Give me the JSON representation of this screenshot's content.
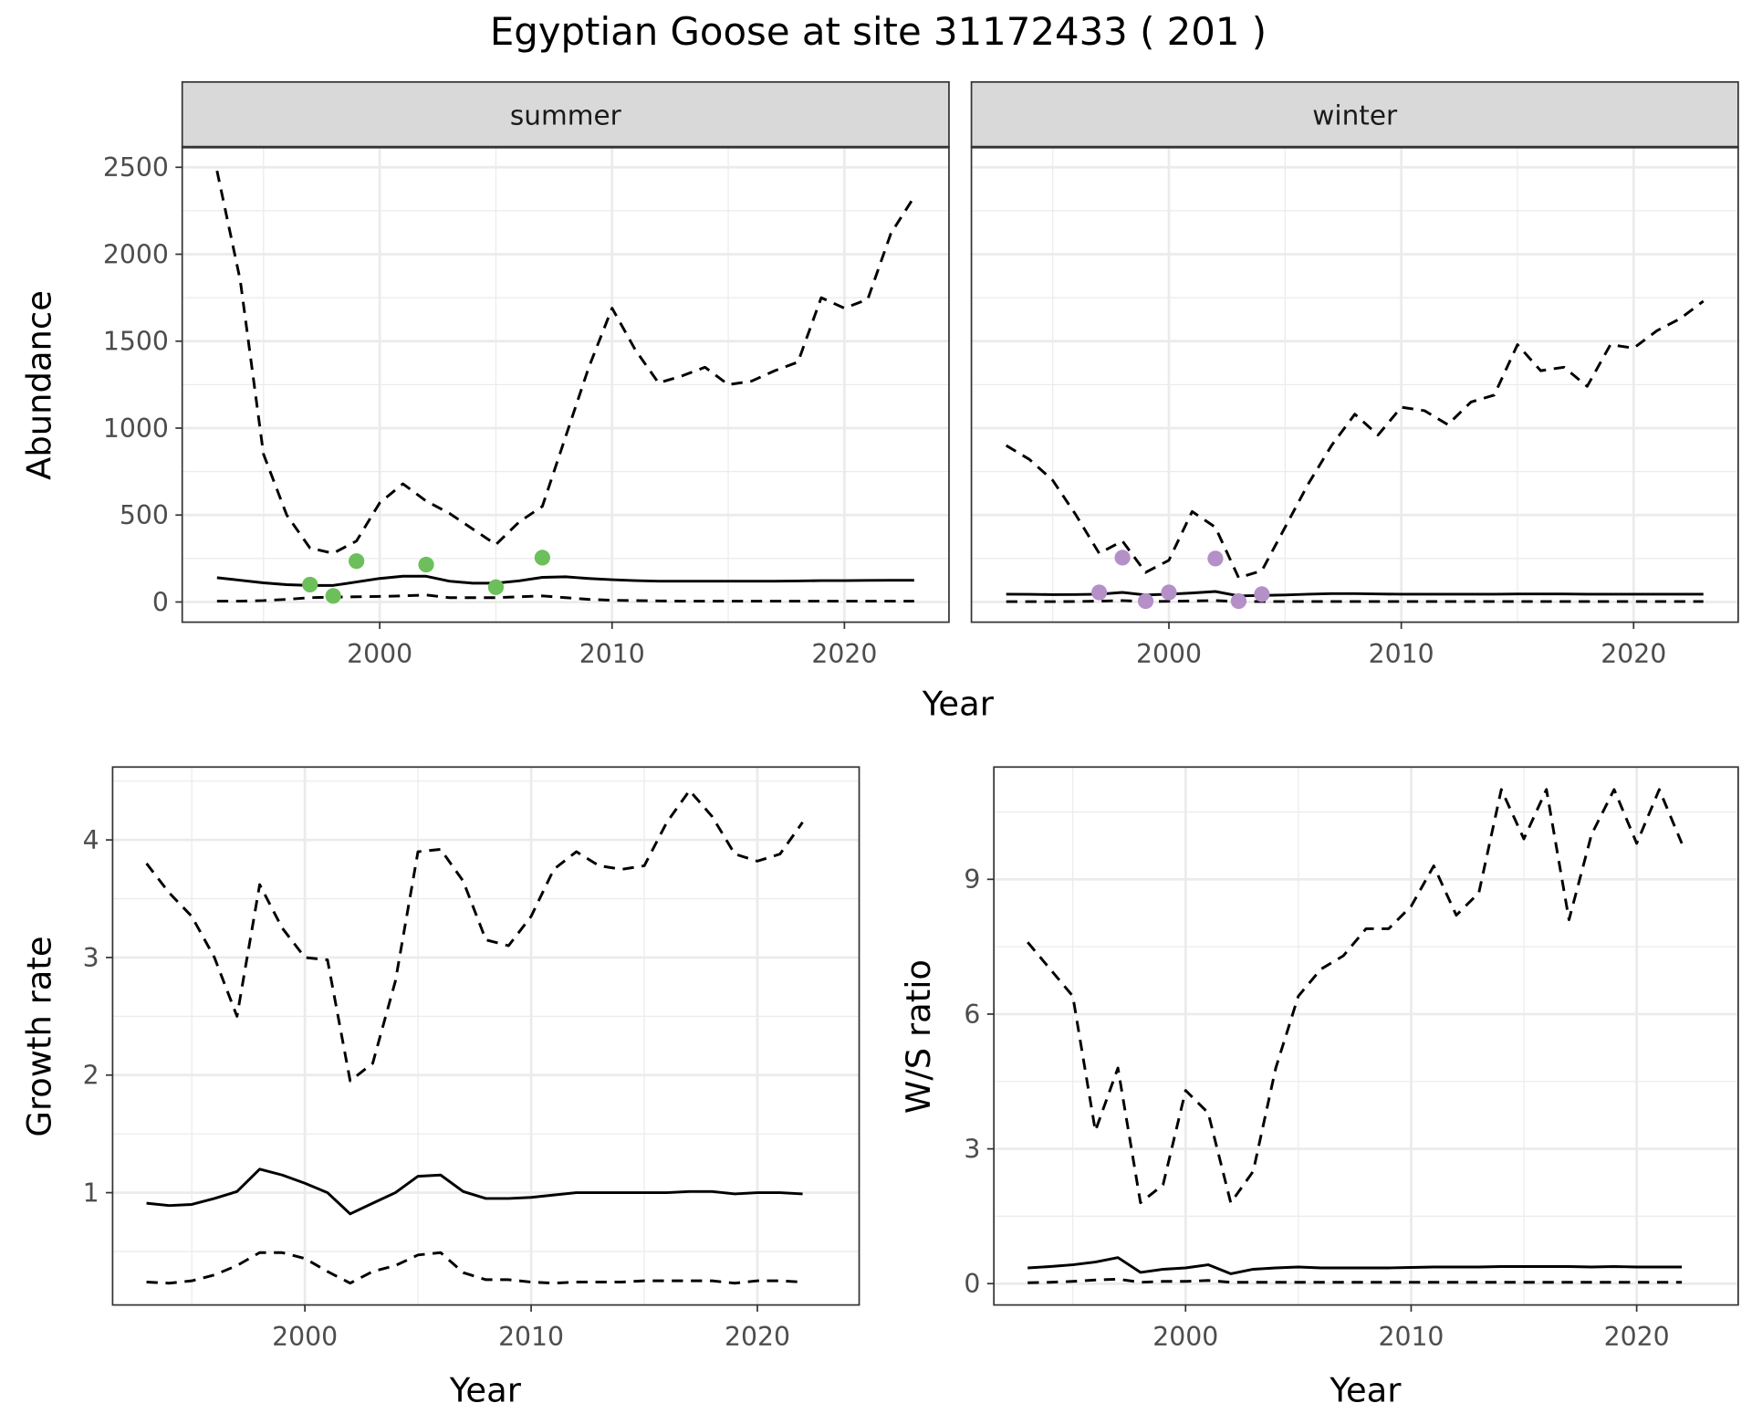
{
  "title": "Egyptian Goose at site 31172433 ( 201 )",
  "colors": {
    "summer_points": "#6cbf5a",
    "winter_points": "#b48fc8",
    "strip": "#d9d9d9",
    "grid": "#ebebeb"
  },
  "chart_data": [
    {
      "id": "abundance-summer",
      "type": "line",
      "facet": "summer",
      "xlabel": "Year",
      "ylabel": "Abundance",
      "xlim": [
        1991.5,
        2024.5
      ],
      "ylim": [
        -116,
        2616
      ],
      "xticks": [
        2000,
        2010,
        2020
      ],
      "yticks": [
        0,
        500,
        1000,
        1500,
        2000,
        2500
      ],
      "x": [
        1993,
        1994,
        1995,
        1996,
        1997,
        1998,
        1999,
        2000,
        2001,
        2002,
        2003,
        2004,
        2005,
        2006,
        2007,
        2008,
        2009,
        2010,
        2011,
        2012,
        2013,
        2014,
        2015,
        2016,
        2017,
        2018,
        2019,
        2020,
        2021,
        2022,
        2023
      ],
      "series": [
        {
          "name": "upper",
          "style": "dashed",
          "values": [
            2480,
            1850,
            850,
            500,
            310,
            280,
            350,
            570,
            680,
            580,
            510,
            420,
            330,
            460,
            550,
            950,
            1350,
            1690,
            1450,
            1260,
            1300,
            1350,
            1250,
            1270,
            1330,
            1380,
            1750,
            1690,
            1740,
            2120,
            2330
          ]
        },
        {
          "name": "mean",
          "style": "solid",
          "values": [
            140,
            125,
            110,
            100,
            95,
            95,
            115,
            135,
            148,
            148,
            120,
            108,
            108,
            122,
            142,
            145,
            135,
            128,
            123,
            120,
            120,
            120,
            120,
            120,
            120,
            121,
            123,
            123,
            124,
            125,
            125
          ]
        },
        {
          "name": "lower",
          "style": "dashed",
          "values": [
            5,
            5,
            8,
            15,
            25,
            28,
            30,
            32,
            35,
            40,
            25,
            25,
            25,
            30,
            35,
            25,
            15,
            10,
            8,
            6,
            5,
            5,
            5,
            5,
            5,
            5,
            5,
            5,
            5,
            5,
            5
          ]
        }
      ],
      "points": {
        "x": [
          1997,
          1998,
          1999,
          2002,
          2005,
          2007
        ],
        "y": [
          100,
          35,
          235,
          215,
          85,
          255
        ]
      }
    },
    {
      "id": "abundance-winter",
      "type": "line",
      "facet": "winter",
      "xlabel": "Year",
      "ylabel": "Abundance",
      "xlim": [
        1991.5,
        2024.5
      ],
      "ylim": [
        -116,
        2616
      ],
      "xticks": [
        2000,
        2010,
        2020
      ],
      "yticks": [
        0,
        500,
        1000,
        1500,
        2000,
        2500
      ],
      "x": [
        1993,
        1994,
        1995,
        1996,
        1997,
        1998,
        1999,
        2000,
        2001,
        2002,
        2003,
        2004,
        2005,
        2006,
        2007,
        2008,
        2009,
        2010,
        2011,
        2012,
        2013,
        2014,
        2015,
        2016,
        2017,
        2018,
        2019,
        2020,
        2021,
        2022,
        2023
      ],
      "series": [
        {
          "name": "upper",
          "style": "dashed",
          "values": [
            900,
            820,
            700,
            500,
            280,
            350,
            170,
            240,
            520,
            430,
            140,
            180,
            430,
            680,
            900,
            1080,
            960,
            1120,
            1100,
            1020,
            1150,
            1190,
            1480,
            1330,
            1350,
            1240,
            1480,
            1460,
            1560,
            1630,
            1730
          ]
        },
        {
          "name": "mean",
          "style": "solid",
          "values": [
            45,
            44,
            42,
            43,
            45,
            55,
            40,
            45,
            52,
            60,
            35,
            38,
            40,
            45,
            48,
            48,
            46,
            45,
            45,
            45,
            45,
            45,
            46,
            46,
            46,
            45,
            45,
            45,
            45,
            45,
            45
          ]
        },
        {
          "name": "lower",
          "style": "dashed",
          "values": [
            2,
            2,
            2,
            3,
            5,
            8,
            3,
            4,
            6,
            8,
            3,
            3,
            3,
            3,
            3,
            3,
            3,
            3,
            3,
            3,
            3,
            3,
            3,
            3,
            3,
            3,
            3,
            3,
            3,
            3,
            3
          ]
        }
      ],
      "points": {
        "x": [
          1997,
          1998,
          1999,
          2000,
          2002,
          2003,
          2004
        ],
        "y": [
          55,
          255,
          5,
          55,
          250,
          5,
          45
        ]
      }
    },
    {
      "id": "growth-rate",
      "type": "line",
      "xlabel": "Year",
      "ylabel": "Growth rate",
      "xlim": [
        1991.5,
        2024.5
      ],
      "ylim": [
        0.045,
        4.62
      ],
      "xticks": [
        2000,
        2010,
        2020
      ],
      "yticks": [
        1,
        2,
        3,
        4
      ],
      "x": [
        1993,
        1994,
        1995,
        1996,
        1997,
        1998,
        1999,
        2000,
        2001,
        2002,
        2003,
        2004,
        2005,
        2006,
        2007,
        2008,
        2009,
        2010,
        2011,
        2012,
        2013,
        2014,
        2015,
        2016,
        2017,
        2018,
        2019,
        2020,
        2021,
        2022
      ],
      "series": [
        {
          "name": "upper",
          "style": "dashed",
          "values": [
            3.8,
            3.55,
            3.35,
            3.0,
            2.5,
            3.62,
            3.25,
            3.0,
            2.98,
            1.95,
            2.1,
            2.8,
            3.9,
            3.92,
            3.65,
            3.15,
            3.1,
            3.35,
            3.75,
            3.9,
            3.78,
            3.75,
            3.78,
            4.15,
            4.42,
            4.2,
            3.88,
            3.82,
            3.88,
            4.15
          ]
        },
        {
          "name": "mean",
          "style": "solid",
          "values": [
            0.91,
            0.89,
            0.9,
            0.95,
            1.01,
            1.2,
            1.15,
            1.08,
            1.0,
            0.82,
            0.91,
            1.0,
            1.14,
            1.15,
            1.01,
            0.95,
            0.95,
            0.96,
            0.98,
            1.0,
            1.0,
            1.0,
            1.0,
            1.0,
            1.01,
            1.01,
            0.99,
            1.0,
            1.0,
            0.99
          ]
        },
        {
          "name": "lower",
          "style": "dashed",
          "values": [
            0.24,
            0.23,
            0.25,
            0.3,
            0.38,
            0.49,
            0.49,
            0.44,
            0.33,
            0.23,
            0.33,
            0.38,
            0.47,
            0.49,
            0.32,
            0.26,
            0.26,
            0.24,
            0.23,
            0.24,
            0.24,
            0.24,
            0.25,
            0.25,
            0.25,
            0.25,
            0.23,
            0.25,
            0.25,
            0.24
          ]
        }
      ]
    },
    {
      "id": "ws-ratio",
      "type": "line",
      "xlabel": "Year",
      "ylabel": "W/S ratio",
      "xlim": [
        1991.5,
        2024.5
      ],
      "ylim": [
        -0.475,
        11.5
      ],
      "xticks": [
        2000,
        2010,
        2020
      ],
      "yticks": [
        0,
        3,
        6,
        9
      ],
      "x": [
        1993,
        1994,
        1995,
        1996,
        1997,
        1998,
        1999,
        2000,
        2001,
        2002,
        2003,
        2004,
        2005,
        2006,
        2007,
        2008,
        2009,
        2010,
        2011,
        2012,
        2013,
        2014,
        2015,
        2016,
        2017,
        2018,
        2019,
        2020,
        2021,
        2022
      ],
      "series": [
        {
          "name": "upper",
          "style": "dashed",
          "values": [
            7.6,
            7.0,
            6.4,
            3.4,
            4.8,
            1.8,
            2.2,
            4.3,
            3.8,
            1.8,
            2.5,
            4.8,
            6.4,
            7.0,
            7.3,
            7.9,
            7.9,
            8.4,
            9.3,
            8.2,
            8.7,
            11.0,
            9.9,
            11.0,
            8.1,
            10.0,
            11.0,
            9.8,
            11.0,
            9.8
          ]
        },
        {
          "name": "mean",
          "style": "solid",
          "values": [
            0.35,
            0.38,
            0.42,
            0.48,
            0.58,
            0.25,
            0.32,
            0.35,
            0.42,
            0.22,
            0.32,
            0.35,
            0.37,
            0.35,
            0.35,
            0.35,
            0.35,
            0.36,
            0.37,
            0.37,
            0.37,
            0.38,
            0.38,
            0.38,
            0.38,
            0.37,
            0.38,
            0.37,
            0.37,
            0.37
          ]
        },
        {
          "name": "lower",
          "style": "dashed",
          "values": [
            0.02,
            0.03,
            0.05,
            0.08,
            0.1,
            0.03,
            0.05,
            0.05,
            0.07,
            0.03,
            0.03,
            0.03,
            0.03,
            0.03,
            0.03,
            0.03,
            0.03,
            0.03,
            0.03,
            0.03,
            0.03,
            0.03,
            0.03,
            0.03,
            0.03,
            0.03,
            0.03,
            0.03,
            0.03,
            0.03
          ]
        }
      ]
    }
  ]
}
